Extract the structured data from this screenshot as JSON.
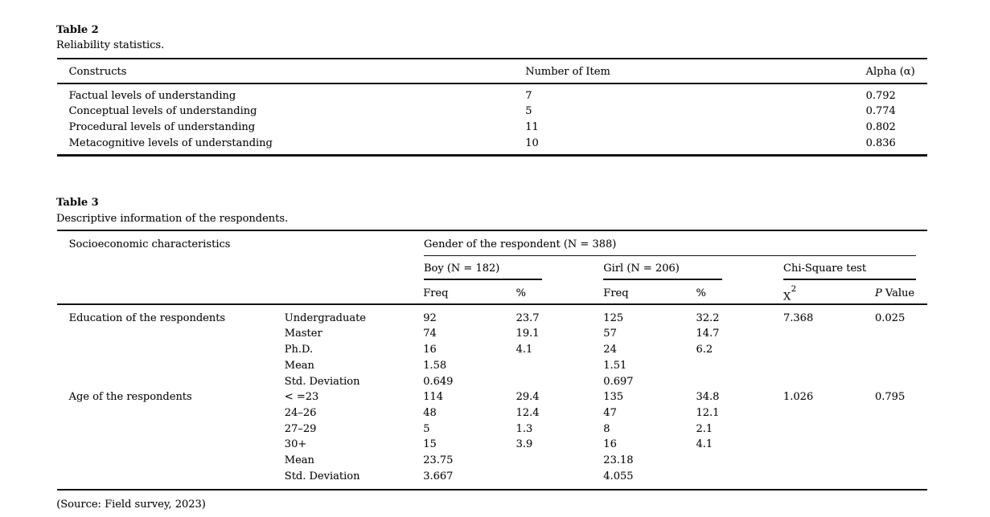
{
  "page": {
    "background": "#ffffff",
    "text_color": "#161616",
    "rule_color": "#121212"
  },
  "table2": {
    "label": "Table 2",
    "caption": "Reliability statistics.",
    "columns": [
      "Constructs",
      "Number of Item",
      "Alpha (α)"
    ],
    "rows": [
      [
        "Factual levels of understanding",
        "7",
        "0.792"
      ],
      [
        "Conceptual levels of understanding",
        "5",
        "0.774"
      ],
      [
        "Procedural levels of understanding",
        "11",
        "0.802"
      ],
      [
        "Metacognitive levels of understanding",
        "10",
        "0.836"
      ]
    ]
  },
  "table3": {
    "label": "Table 3",
    "caption": "Descriptive information of the respondents.",
    "header": {
      "col1": "Socioeconomic characteristics",
      "gender_group": "Gender of the respondent (N = 388)",
      "boy_group": "Boy (N = 182)",
      "girl_group": "Girl (N = 206)",
      "chi_group": "Chi-Square test",
      "boy_freq": "Freq",
      "boy_pct": "%",
      "girl_freq": "Freq",
      "girl_pct": "%",
      "x2": {
        "base": "X",
        "sup": "2"
      },
      "p": {
        "italic": "P",
        "rest": " Value"
      }
    },
    "rows": [
      [
        "Education of the respondents",
        "Undergraduate",
        "92",
        "23.7",
        "125",
        "32.2",
        "7.368",
        "0.025"
      ],
      [
        "",
        "Master",
        "74",
        "19.1",
        "57",
        "14.7",
        "",
        ""
      ],
      [
        "",
        "Ph.D.",
        "16",
        "4.1",
        "24",
        "6.2",
        "",
        ""
      ],
      [
        "",
        "Mean",
        "1.58",
        "",
        "1.51",
        "",
        "",
        ""
      ],
      [
        "",
        "Std. Deviation",
        "0.649",
        "",
        "0.697",
        "",
        "",
        ""
      ],
      [
        "Age of the respondents",
        "< =23",
        "114",
        "29.4",
        "135",
        "34.8",
        "1.026",
        "0.795"
      ],
      [
        "",
        "24–26",
        "48",
        "12.4",
        "47",
        "12.1",
        "",
        ""
      ],
      [
        "",
        "27–29",
        "5",
        "1.3",
        "8",
        "2.1",
        "",
        ""
      ],
      [
        "",
        "30+",
        "15",
        "3.9",
        "16",
        "4.1",
        "",
        ""
      ],
      [
        "",
        "Mean",
        "23.75",
        "",
        "23.18",
        "",
        "",
        ""
      ],
      [
        "",
        "Std. Deviation",
        "3.667",
        "",
        "4.055",
        "",
        "",
        ""
      ]
    ],
    "source_note": "(Source: Field survey, 2023)"
  }
}
